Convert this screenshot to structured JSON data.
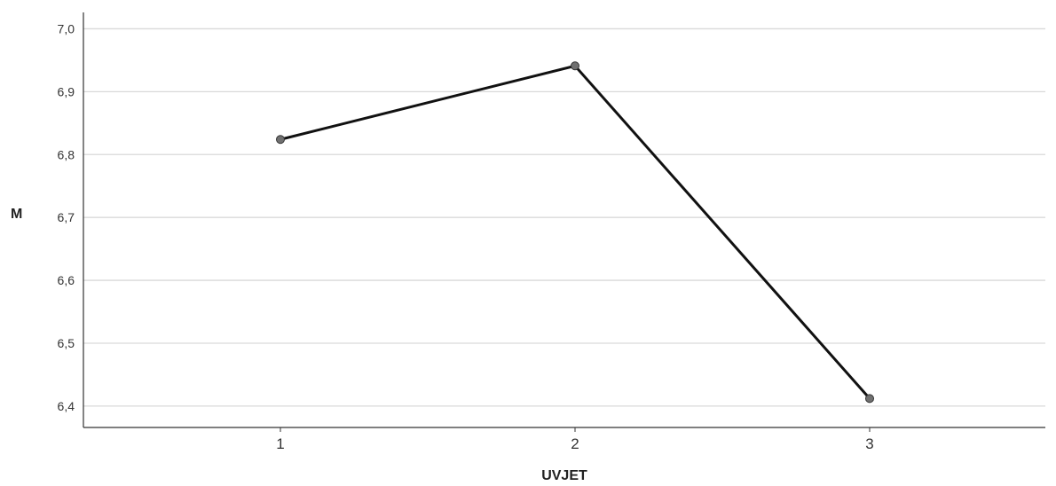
{
  "chart_data": {
    "type": "line",
    "xlabel": "UVJET",
    "ylabel": "M",
    "categories": [
      "1",
      "2",
      "3"
    ],
    "series": [
      {
        "values": [
          6.824,
          6.941,
          6.412
        ]
      }
    ],
    "ylim": [
      6.366,
      7.026
    ],
    "yticks": [
      7.0,
      6.9,
      6.8,
      6.7,
      6.6,
      6.5,
      6.4
    ],
    "ytick_labels": [
      "7,0",
      "6,9",
      "6,8",
      "6,7",
      "6,6",
      "6,5",
      "6,4"
    ],
    "grid": "horizontal",
    "colors": {
      "line": "#111111",
      "marker_fill": "#707070",
      "grid": "#d9d9d9",
      "axis": "#333333"
    }
  }
}
